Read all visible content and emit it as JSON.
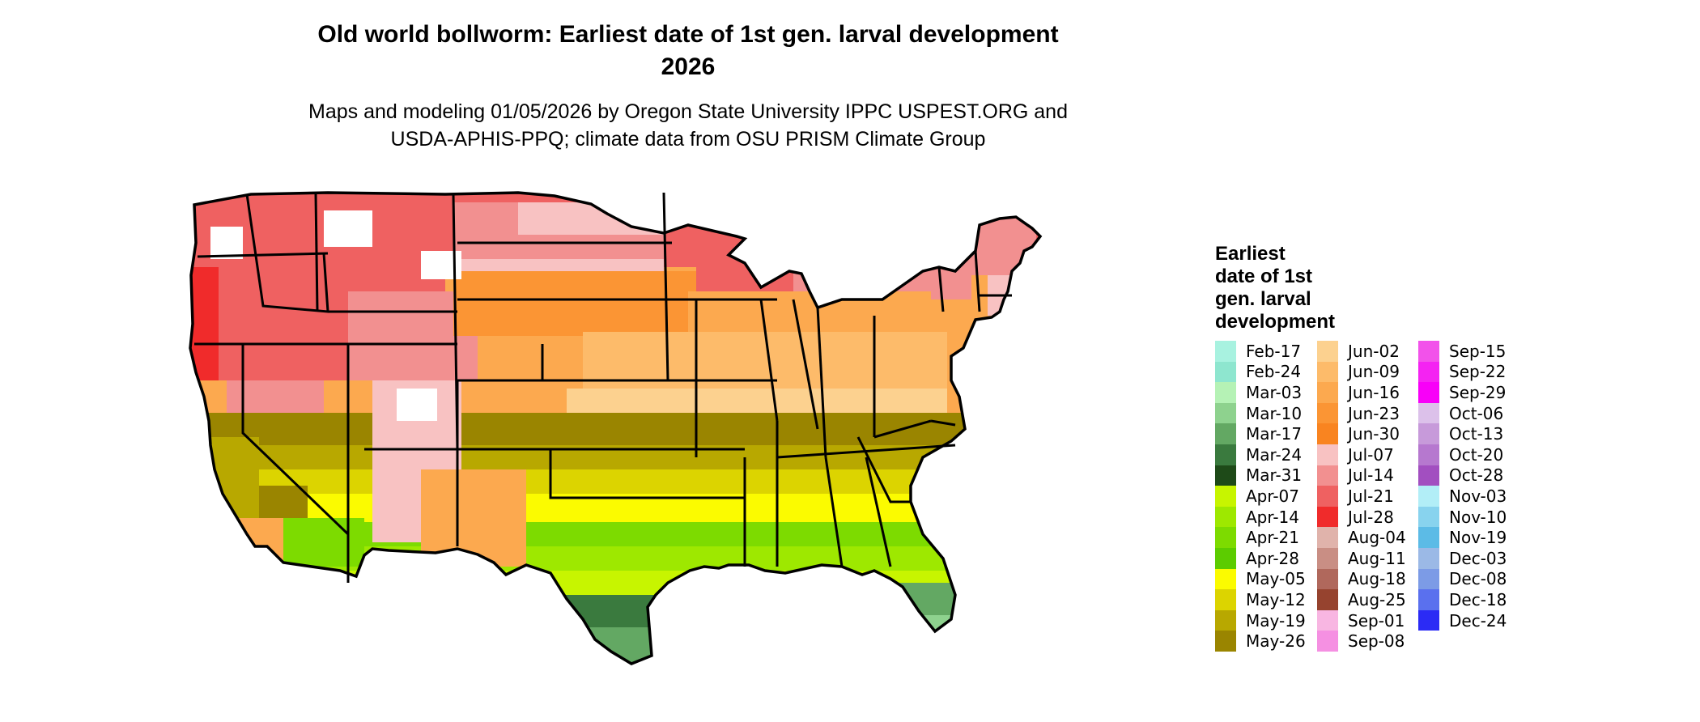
{
  "title_line1": "Old world bollworm: Earliest date of 1st gen. larval development",
  "title_line2": "2026",
  "subtitle_line1": "Maps and modeling 01/05/2026 by Oregon State University IPPC USPEST.ORG and",
  "subtitle_line2": "USDA-APHIS-PPQ; climate data from OSU PRISM Climate Group",
  "legend": {
    "title_lines": [
      "Earliest",
      "date of 1st",
      "gen. larval",
      "development"
    ],
    "columns": [
      [
        {
          "label": "Feb-17",
          "color": "#a8f2e0"
        },
        {
          "label": "Feb-24",
          "color": "#8ee6cf"
        },
        {
          "label": "Mar-03",
          "color": "#b5f2b5"
        },
        {
          "label": "Mar-10",
          "color": "#8ed28e"
        },
        {
          "label": "Mar-17",
          "color": "#63a863"
        },
        {
          "label": "Mar-24",
          "color": "#3a7a3e"
        },
        {
          "label": "Mar-31",
          "color": "#1e4a18"
        },
        {
          "label": "Apr-07",
          "color": "#c7f500"
        },
        {
          "label": "Apr-14",
          "color": "#9ee800"
        },
        {
          "label": "Apr-21",
          "color": "#7ddb00"
        },
        {
          "label": "Apr-28",
          "color": "#5ccc00"
        },
        {
          "label": "May-05",
          "color": "#fbfb00"
        },
        {
          "label": "May-12",
          "color": "#dcd400"
        },
        {
          "label": "May-19",
          "color": "#b8a800"
        },
        {
          "label": "May-26",
          "color": "#9a8500"
        }
      ],
      [
        {
          "label": "Jun-02",
          "color": "#fcd18f"
        },
        {
          "label": "Jun-09",
          "color": "#fdbb6a"
        },
        {
          "label": "Jun-16",
          "color": "#fca94f"
        },
        {
          "label": "Jun-23",
          "color": "#fb9534"
        },
        {
          "label": "Jun-30",
          "color": "#f98420"
        },
        {
          "label": "Jul-07",
          "color": "#f8c2c2"
        },
        {
          "label": "Jul-14",
          "color": "#f29090"
        },
        {
          "label": "Jul-21",
          "color": "#ef6161"
        },
        {
          "label": "Jul-28",
          "color": "#f02b2b"
        },
        {
          "label": "Aug-04",
          "color": "#e0b3ab"
        },
        {
          "label": "Aug-11",
          "color": "#c98e84"
        },
        {
          "label": "Aug-18",
          "color": "#b0685c"
        },
        {
          "label": "Aug-25",
          "color": "#96432f"
        },
        {
          "label": "Sep-01",
          "color": "#f8b6e2"
        },
        {
          "label": "Sep-08",
          "color": "#f590e2"
        }
      ],
      [
        {
          "label": "Sep-15",
          "color": "#f252ea"
        },
        {
          "label": "Sep-22",
          "color": "#f423f2"
        },
        {
          "label": "Sep-29",
          "color": "#f800f8"
        },
        {
          "label": "Oct-06",
          "color": "#dcc1ea"
        },
        {
          "label": "Oct-13",
          "color": "#c79ada"
        },
        {
          "label": "Oct-20",
          "color": "#b678cf"
        },
        {
          "label": "Oct-28",
          "color": "#a24fc0"
        },
        {
          "label": "Nov-03",
          "color": "#b2eef7"
        },
        {
          "label": "Nov-10",
          "color": "#88d3ee"
        },
        {
          "label": "Nov-19",
          "color": "#5cbbe6"
        },
        {
          "label": "Dec-03",
          "color": "#9bb9e6"
        },
        {
          "label": "Dec-08",
          "color": "#7c9be6"
        },
        {
          "label": "Dec-18",
          "color": "#5a70ee"
        },
        {
          "label": "Dec-24",
          "color": "#2b2bf5"
        }
      ]
    ]
  }
}
